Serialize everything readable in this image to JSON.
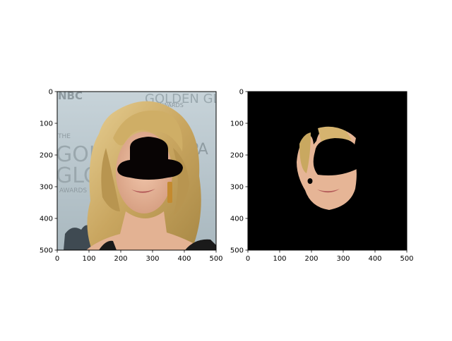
{
  "chart_data": [
    {
      "type": "image",
      "panel": "left",
      "image_description": "Photo of a blonde woman in front of a Golden Globes backdrop with the eyes region masked by a black bowler-hat shape",
      "xlim": [
        0,
        500
      ],
      "ylim": [
        500,
        0
      ],
      "xticks": [
        "0",
        "100",
        "200",
        "300",
        "400",
        "500"
      ],
      "yticks": [
        "0",
        "100",
        "200",
        "300",
        "400",
        "500"
      ],
      "backdrop_text": [
        "NBC",
        "GOLDEN GLOBE",
        "AWARDS",
        "THE",
        "GOLD",
        "GLOB",
        "AWARDS",
        "EPA"
      ]
    },
    {
      "type": "image",
      "panel": "right",
      "image_description": "Segmentation mask showing only the face region on a black background, with the eye region blacked out",
      "xlim": [
        0,
        500
      ],
      "ylim": [
        500,
        0
      ],
      "xticks": [
        "0",
        "100",
        "200",
        "300",
        "400",
        "500"
      ],
      "yticks": [
        "0",
        "100",
        "200",
        "300",
        "400",
        "500"
      ]
    }
  ],
  "colors": {
    "backdrop": "#b9c6cc",
    "hair": "#d6b874",
    "skin": "#e9b99d",
    "mask": "#000000"
  }
}
